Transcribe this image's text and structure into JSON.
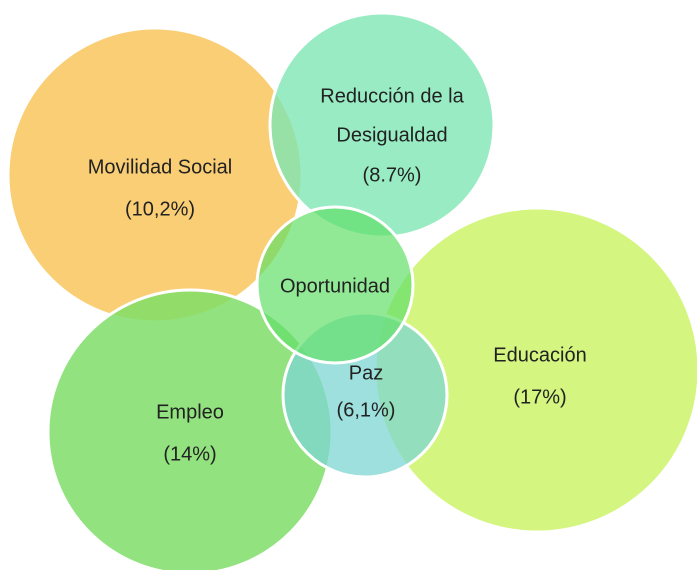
{
  "nodes": [
    {
      "lines": [
        "Movilidad Social",
        "(10,2%)"
      ]
    },
    {
      "lines": [
        "Reducción de la",
        "Desigualdad",
        "(8.7%)"
      ]
    },
    {
      "lines": [
        "Empleo",
        "(14%)"
      ]
    },
    {
      "lines": [
        "Educación",
        "(17%)"
      ]
    },
    {
      "lines": [
        "Paz",
        "(6,1%)"
      ]
    },
    {
      "lines": [
        "Oportunidad"
      ]
    }
  ]
}
